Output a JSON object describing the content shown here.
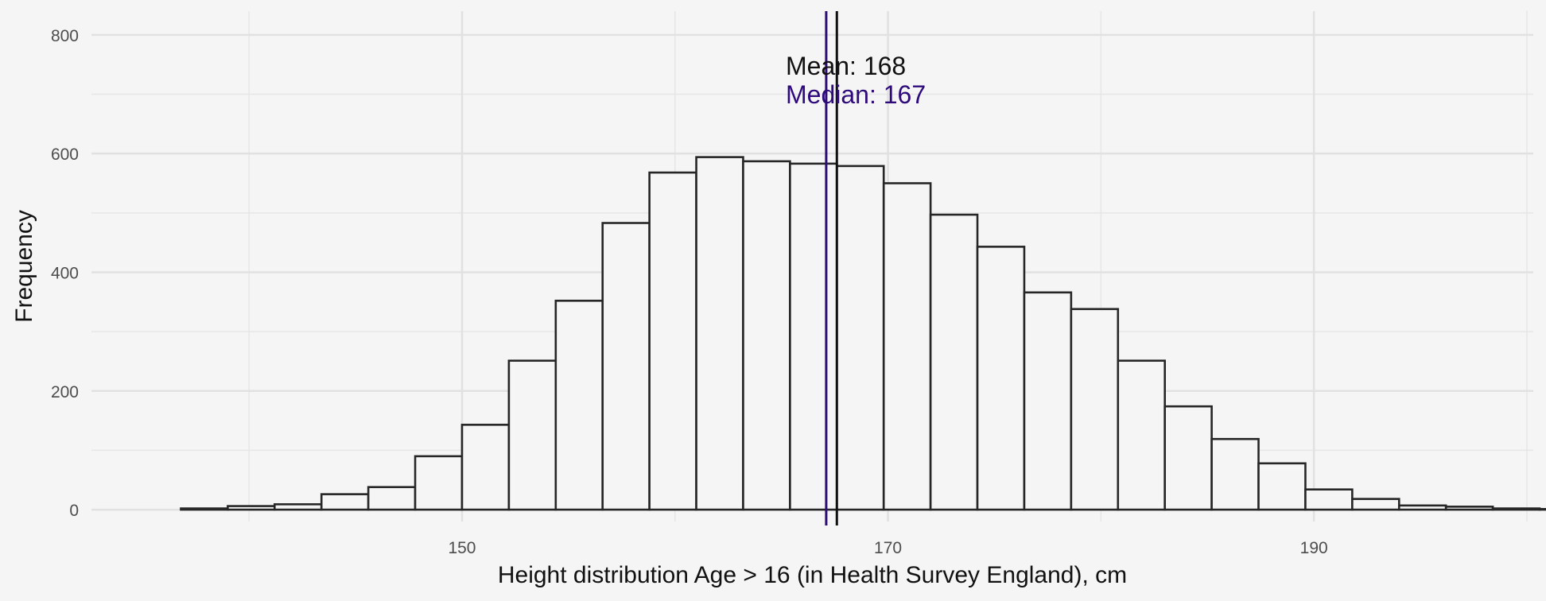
{
  "chart_data": {
    "type": "bar",
    "xlabel": "Height distribution Age > 16 (in Health Survey England), cm",
    "ylabel": "Frequency",
    "xlim": [
      132.6,
      200.3
    ],
    "ylim": [
      -20,
      840
    ],
    "x_ticks": [
      150,
      170,
      190
    ],
    "y_ticks": [
      0,
      200,
      400,
      600,
      800
    ],
    "grid": true,
    "bin_edges": [
      136.8,
      139.0,
      141.2,
      143.4,
      145.6,
      147.8,
      150.0,
      152.2,
      154.4,
      156.6,
      158.8,
      161.0,
      163.2,
      165.4,
      167.6,
      169.8,
      172.0,
      174.2,
      176.4,
      178.6,
      180.8,
      183.0,
      185.2,
      187.4,
      189.6,
      191.8,
      194.0,
      196.2,
      198.4,
      200.6,
      202.8
    ],
    "values": [
      2,
      6,
      9,
      26,
      38,
      90,
      143,
      251,
      352,
      483,
      568,
      594,
      587,
      583,
      579,
      550,
      497,
      443,
      366,
      338,
      251,
      174,
      119,
      78,
      34,
      18,
      7,
      5,
      2,
      1
    ],
    "mean_line": {
      "value": 167.6,
      "label": "Mean:  168",
      "color": "#111111"
    },
    "median_line": {
      "value": 167.1,
      "label": "Median:  167",
      "color": "#2e0a7a"
    }
  }
}
